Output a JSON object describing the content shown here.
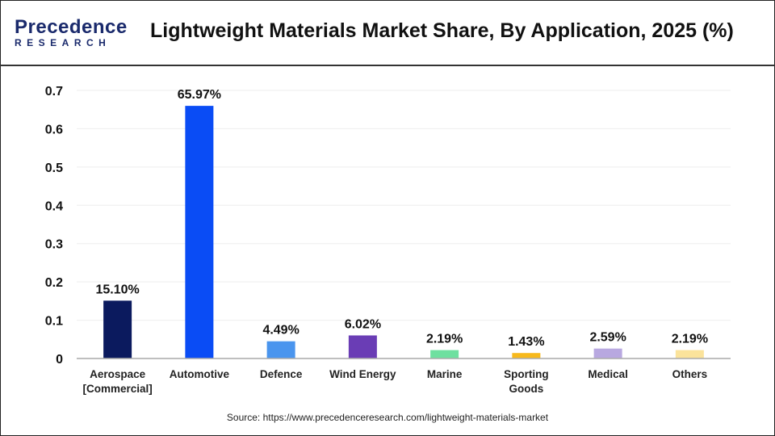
{
  "header": {
    "logo_line1": "Precedence",
    "logo_line2": "RESEARCH",
    "title": "Lightweight Materials Market Share, By Application, 2025 (%)"
  },
  "source": "Source: https://www.precedenceresearch.com/lightweight-materials-market",
  "chart_data": {
    "type": "bar",
    "title": "Lightweight Materials Market Share, By Application, 2025 (%)",
    "categories": [
      "Aerospace [Commercial]",
      "Automotive",
      "Defence",
      "Wind Energy",
      "Marine",
      "Sporting Goods",
      "Medical",
      "Others"
    ],
    "category_lines": [
      [
        "Aerospace",
        "[Commercial]"
      ],
      [
        "Automotive"
      ],
      [
        "Defence"
      ],
      [
        "Wind Energy"
      ],
      [
        "Marine"
      ],
      [
        "Sporting",
        "Goods"
      ],
      [
        "Medical"
      ],
      [
        "Others"
      ]
    ],
    "values": [
      0.151,
      0.6597,
      0.0449,
      0.0602,
      0.0219,
      0.0143,
      0.0259,
      0.0219
    ],
    "data_labels": [
      "15.10%",
      "65.97%",
      "4.49%",
      "6.02%",
      "2.19%",
      "1.43%",
      "2.59%",
      "2.19%"
    ],
    "colors": [
      "#0b1a5e",
      "#0a4cf5",
      "#4a95ee",
      "#6a3db5",
      "#6ee0a0",
      "#f7b91c",
      "#b8a8e0",
      "#fbe39b"
    ],
    "yticks": [
      0,
      0.1,
      0.2,
      0.3,
      0.4,
      0.5,
      0.6,
      0.7
    ],
    "ytick_labels": [
      "0",
      "0.1",
      "0.2",
      "0.3",
      "0.4",
      "0.5",
      "0.6",
      "0.7"
    ],
    "ylim": [
      0,
      0.7
    ],
    "grid": true
  }
}
